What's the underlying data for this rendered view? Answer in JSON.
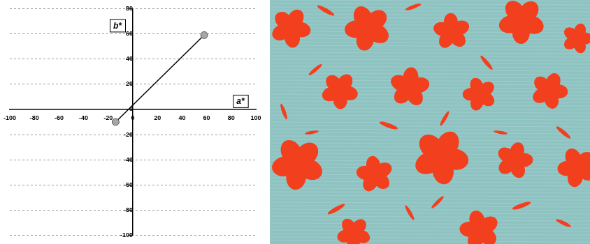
{
  "chart_data": {
    "type": "scatter",
    "xlabel": "a*",
    "ylabel": "b*",
    "x": [
      -14,
      58
    ],
    "values": [
      -10,
      59
    ],
    "color": "#a6a6a6",
    "marker": "circle",
    "line_style": "solid",
    "xlim": [
      -100,
      100
    ],
    "xticks": [
      -100,
      -80,
      -60,
      -40,
      -20,
      0,
      20,
      40,
      60,
      80,
      100
    ],
    "ylim": [
      -100,
      80
    ],
    "yticks": [
      -100,
      -80,
      -60,
      -40,
      -20,
      0,
      20,
      40,
      60,
      80
    ],
    "grid": true
  }
}
